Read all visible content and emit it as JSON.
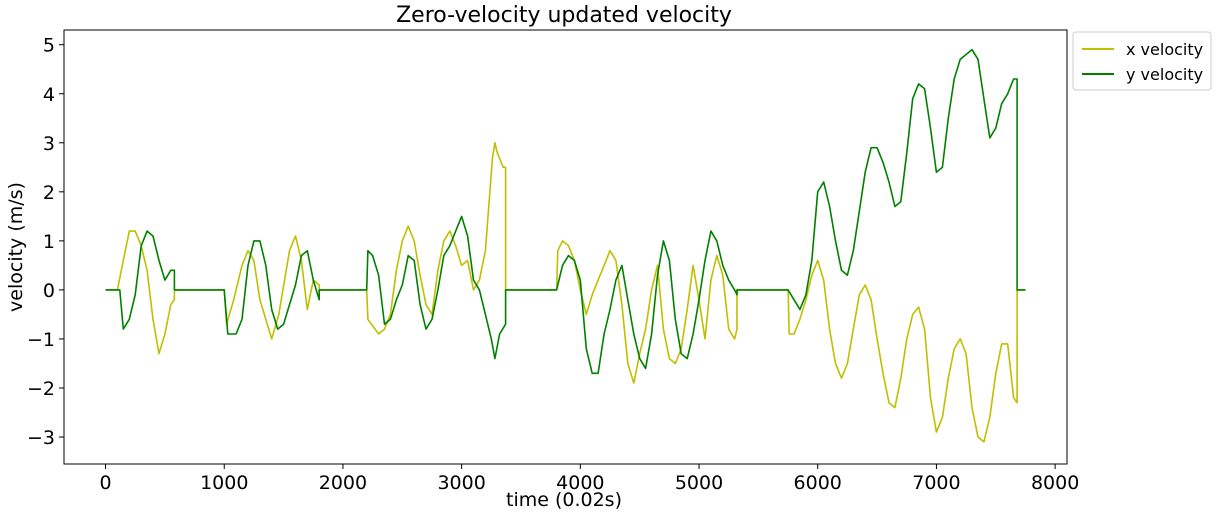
{
  "chart_data": {
    "type": "line",
    "title": "Zero-velocity updated velocity",
    "xlabel": "time (0.02s)",
    "ylabel": "velocity (m/s)",
    "xlim": [
      -350,
      8100
    ],
    "ylim": [
      -3.55,
      5.3
    ],
    "xticks": [
      0,
      1000,
      2000,
      3000,
      4000,
      5000,
      6000,
      7000,
      8000
    ],
    "xtick_labels": [
      "0",
      "1000",
      "2000",
      "3000",
      "4000",
      "5000",
      "6000",
      "7000",
      "8000"
    ],
    "yticks": [
      -3,
      -2,
      -1,
      0,
      1,
      2,
      3,
      4,
      5
    ],
    "ytick_labels": [
      "−3",
      "−2",
      "−1",
      "0",
      "1",
      "2",
      "3",
      "4",
      "5"
    ],
    "grid": false,
    "legend": {
      "placement": "outside-top-right"
    },
    "series": [
      {
        "name": "x velocity",
        "color": "#bfbf00",
        "points": [
          [
            0,
            0
          ],
          [
            100,
            0
          ],
          [
            150,
            0.6
          ],
          [
            200,
            1.2
          ],
          [
            250,
            1.2
          ],
          [
            300,
            0.9
          ],
          [
            350,
            0.4
          ],
          [
            400,
            -0.6
          ],
          [
            450,
            -1.3
          ],
          [
            500,
            -0.9
          ],
          [
            550,
            -0.3
          ],
          [
            580,
            -0.2
          ],
          [
            580,
            0
          ],
          [
            900,
            0
          ],
          [
            1000,
            0
          ],
          [
            1020,
            -0.7
          ],
          [
            1080,
            -0.2
          ],
          [
            1150,
            0.5
          ],
          [
            1200,
            0.8
          ],
          [
            1250,
            0.6
          ],
          [
            1300,
            -0.2
          ],
          [
            1350,
            -0.6
          ],
          [
            1400,
            -1.0
          ],
          [
            1460,
            -0.5
          ],
          [
            1550,
            0.8
          ],
          [
            1600,
            1.1
          ],
          [
            1650,
            0.6
          ],
          [
            1700,
            -0.4
          ],
          [
            1750,
            0.2
          ],
          [
            1800,
            0.1
          ],
          [
            1800,
            0
          ],
          [
            2200,
            0
          ],
          [
            2210,
            -0.6
          ],
          [
            2300,
            -0.9
          ],
          [
            2350,
            -0.8
          ],
          [
            2400,
            -0.5
          ],
          [
            2450,
            0.4
          ],
          [
            2500,
            1.0
          ],
          [
            2550,
            1.3
          ],
          [
            2600,
            1.0
          ],
          [
            2650,
            0.3
          ],
          [
            2700,
            -0.3
          ],
          [
            2750,
            -0.5
          ],
          [
            2800,
            0.4
          ],
          [
            2850,
            1.0
          ],
          [
            2900,
            1.2
          ],
          [
            2950,
            0.9
          ],
          [
            3000,
            0.5
          ],
          [
            3050,
            0.6
          ],
          [
            3100,
            0
          ],
          [
            3150,
            0.2
          ],
          [
            3200,
            0.8
          ],
          [
            3260,
            2.7
          ],
          [
            3280,
            3.0
          ],
          [
            3300,
            2.8
          ],
          [
            3350,
            2.5
          ],
          [
            3370,
            2.5
          ],
          [
            3370,
            0
          ],
          [
            3800,
            0
          ],
          [
            3810,
            0.8
          ],
          [
            3850,
            1.0
          ],
          [
            3900,
            0.9
          ],
          [
            3950,
            0.6
          ],
          [
            4000,
            0
          ],
          [
            4050,
            -0.5
          ],
          [
            4100,
            -0.1
          ],
          [
            4150,
            0.2
          ],
          [
            4200,
            0.5
          ],
          [
            4250,
            0.8
          ],
          [
            4300,
            0.6
          ],
          [
            4350,
            -0.3
          ],
          [
            4400,
            -1.5
          ],
          [
            4450,
            -1.9
          ],
          [
            4500,
            -1.3
          ],
          [
            4550,
            -0.8
          ],
          [
            4600,
            0
          ],
          [
            4650,
            0.5
          ],
          [
            4700,
            -0.8
          ],
          [
            4750,
            -1.4
          ],
          [
            4800,
            -1.5
          ],
          [
            4850,
            -1.2
          ],
          [
            4900,
            -0.4
          ],
          [
            4950,
            0.5
          ],
          [
            5000,
            -0.2
          ],
          [
            5050,
            -1.0
          ],
          [
            5100,
            0.2
          ],
          [
            5150,
            0.7
          ],
          [
            5200,
            0.3
          ],
          [
            5250,
            -0.8
          ],
          [
            5300,
            -1.0
          ],
          [
            5320,
            -0.8
          ],
          [
            5320,
            0
          ],
          [
            5750,
            0
          ],
          [
            5760,
            -0.9
          ],
          [
            5800,
            -0.9
          ],
          [
            5850,
            -0.6
          ],
          [
            5900,
            -0.2
          ],
          [
            5950,
            0.3
          ],
          [
            6000,
            0.6
          ],
          [
            6050,
            0.2
          ],
          [
            6100,
            -0.8
          ],
          [
            6150,
            -1.5
          ],
          [
            6200,
            -1.8
          ],
          [
            6250,
            -1.5
          ],
          [
            6300,
            -0.8
          ],
          [
            6350,
            -0.1
          ],
          [
            6400,
            0.1
          ],
          [
            6450,
            -0.2
          ],
          [
            6500,
            -1.0
          ],
          [
            6550,
            -1.7
          ],
          [
            6600,
            -2.3
          ],
          [
            6650,
            -2.4
          ],
          [
            6700,
            -1.8
          ],
          [
            6750,
            -1.0
          ],
          [
            6800,
            -0.5
          ],
          [
            6850,
            -0.35
          ],
          [
            6900,
            -0.8
          ],
          [
            6950,
            -2.2
          ],
          [
            7000,
            -2.9
          ],
          [
            7050,
            -2.6
          ],
          [
            7100,
            -1.8
          ],
          [
            7150,
            -1.2
          ],
          [
            7200,
            -1.0
          ],
          [
            7250,
            -1.3
          ],
          [
            7300,
            -2.4
          ],
          [
            7350,
            -3.0
          ],
          [
            7400,
            -3.1
          ],
          [
            7450,
            -2.6
          ],
          [
            7500,
            -1.7
          ],
          [
            7550,
            -1.1
          ],
          [
            7600,
            -1.1
          ],
          [
            7650,
            -2.2
          ],
          [
            7680,
            -2.3
          ],
          [
            7680,
            0
          ],
          [
            7750,
            0
          ]
        ]
      },
      {
        "name": "y velocity",
        "color": "#008000",
        "points": [
          [
            0,
            0
          ],
          [
            120,
            0
          ],
          [
            150,
            -0.8
          ],
          [
            200,
            -0.6
          ],
          [
            250,
            -0.1
          ],
          [
            300,
            0.9
          ],
          [
            350,
            1.2
          ],
          [
            400,
            1.1
          ],
          [
            450,
            0.6
          ],
          [
            500,
            0.2
          ],
          [
            550,
            0.4
          ],
          [
            580,
            0.4
          ],
          [
            580,
            0
          ],
          [
            900,
            0
          ],
          [
            1000,
            0
          ],
          [
            1030,
            -0.9
          ],
          [
            1100,
            -0.9
          ],
          [
            1150,
            -0.6
          ],
          [
            1200,
            0.5
          ],
          [
            1250,
            1.0
          ],
          [
            1300,
            1.0
          ],
          [
            1350,
            0.5
          ],
          [
            1400,
            -0.4
          ],
          [
            1450,
            -0.8
          ],
          [
            1500,
            -0.7
          ],
          [
            1550,
            -0.3
          ],
          [
            1600,
            0.1
          ],
          [
            1650,
            0.7
          ],
          [
            1700,
            0.8
          ],
          [
            1750,
            0.2
          ],
          [
            1800,
            -0.2
          ],
          [
            1800,
            0
          ],
          [
            2200,
            0
          ],
          [
            2210,
            0.8
          ],
          [
            2250,
            0.7
          ],
          [
            2300,
            0.3
          ],
          [
            2350,
            -0.7
          ],
          [
            2400,
            -0.6
          ],
          [
            2450,
            -0.2
          ],
          [
            2500,
            0.1
          ],
          [
            2550,
            0.7
          ],
          [
            2600,
            0.6
          ],
          [
            2650,
            -0.3
          ],
          [
            2700,
            -0.8
          ],
          [
            2750,
            -0.6
          ],
          [
            2800,
            0
          ],
          [
            2850,
            0.7
          ],
          [
            2900,
            0.9
          ],
          [
            2950,
            1.2
          ],
          [
            3000,
            1.5
          ],
          [
            3050,
            1.1
          ],
          [
            3100,
            0.2
          ],
          [
            3150,
            0
          ],
          [
            3200,
            -0.5
          ],
          [
            3250,
            -1.0
          ],
          [
            3280,
            -1.4
          ],
          [
            3320,
            -0.9
          ],
          [
            3370,
            -0.7
          ],
          [
            3370,
            0
          ],
          [
            3800,
            0
          ],
          [
            3850,
            0.5
          ],
          [
            3900,
            0.7
          ],
          [
            3950,
            0.6
          ],
          [
            4000,
            0.2
          ],
          [
            4050,
            -1.2
          ],
          [
            4100,
            -1.7
          ],
          [
            4150,
            -1.7
          ],
          [
            4200,
            -0.9
          ],
          [
            4250,
            -0.4
          ],
          [
            4300,
            0.2
          ],
          [
            4350,
            0.5
          ],
          [
            4400,
            -0.2
          ],
          [
            4450,
            -0.9
          ],
          [
            4500,
            -1.4
          ],
          [
            4550,
            -1.6
          ],
          [
            4600,
            -0.9
          ],
          [
            4650,
            0.3
          ],
          [
            4700,
            1.0
          ],
          [
            4750,
            0.6
          ],
          [
            4800,
            -0.6
          ],
          [
            4850,
            -1.3
          ],
          [
            4900,
            -1.4
          ],
          [
            4950,
            -0.9
          ],
          [
            5000,
            -0.2
          ],
          [
            5050,
            0.6
          ],
          [
            5100,
            1.2
          ],
          [
            5150,
            1.0
          ],
          [
            5200,
            0.5
          ],
          [
            5250,
            0.2
          ],
          [
            5300,
            0
          ],
          [
            5320,
            -0.1
          ],
          [
            5320,
            0
          ],
          [
            5750,
            0
          ],
          [
            5800,
            -0.2
          ],
          [
            5850,
            -0.4
          ],
          [
            5900,
            -0.1
          ],
          [
            5950,
            0.6
          ],
          [
            6000,
            2.0
          ],
          [
            6050,
            2.2
          ],
          [
            6100,
            1.7
          ],
          [
            6150,
            1.0
          ],
          [
            6200,
            0.4
          ],
          [
            6250,
            0.3
          ],
          [
            6300,
            0.8
          ],
          [
            6350,
            1.6
          ],
          [
            6400,
            2.4
          ],
          [
            6450,
            2.9
          ],
          [
            6500,
            2.9
          ],
          [
            6550,
            2.6
          ],
          [
            6600,
            2.2
          ],
          [
            6650,
            1.7
          ],
          [
            6700,
            1.8
          ],
          [
            6750,
            2.8
          ],
          [
            6800,
            3.9
          ],
          [
            6850,
            4.2
          ],
          [
            6900,
            4.1
          ],
          [
            6950,
            3.3
          ],
          [
            7000,
            2.4
          ],
          [
            7050,
            2.5
          ],
          [
            7100,
            3.5
          ],
          [
            7150,
            4.3
          ],
          [
            7200,
            4.7
          ],
          [
            7250,
            4.8
          ],
          [
            7300,
            4.9
          ],
          [
            7350,
            4.7
          ],
          [
            7400,
            3.9
          ],
          [
            7450,
            3.1
          ],
          [
            7500,
            3.3
          ],
          [
            7550,
            3.8
          ],
          [
            7600,
            4.0
          ],
          [
            7650,
            4.3
          ],
          [
            7680,
            4.3
          ],
          [
            7680,
            0
          ],
          [
            7750,
            0
          ]
        ]
      }
    ]
  }
}
